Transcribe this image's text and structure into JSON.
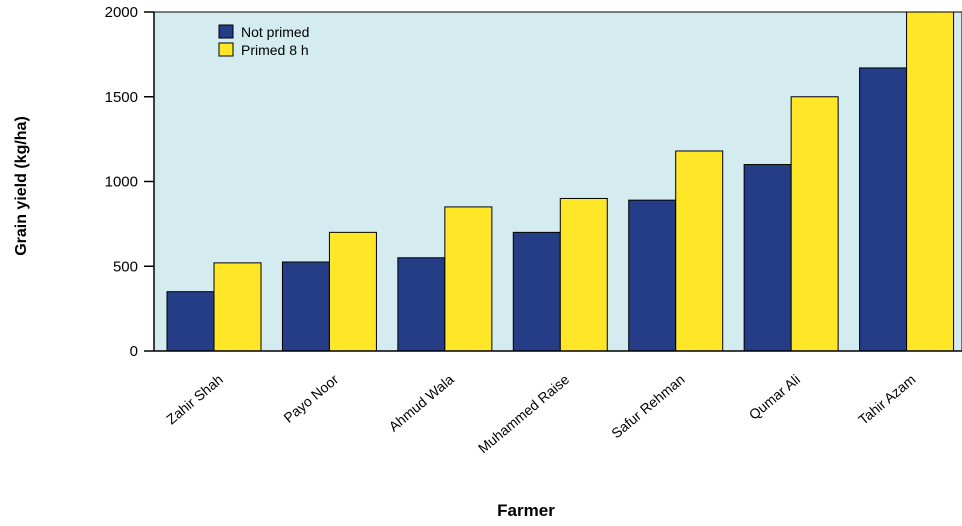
{
  "chart_data": {
    "type": "bar",
    "title": "",
    "xlabel": "Farmer",
    "ylabel": "Grain yield (kg/ha)",
    "ylim": [
      0,
      2000
    ],
    "yticks": [
      0,
      500,
      1000,
      1500,
      2000
    ],
    "grid": false,
    "legend_position": "top-left",
    "categories": [
      "Zahir Shah",
      "Payo Noor",
      "Ahmud Wala",
      "Muhammed Raise",
      "Safur Rehman",
      "Qumar Ali",
      "Tahir Azam"
    ],
    "series": [
      {
        "name": "Not primed",
        "color": "#253c87",
        "values": [
          350,
          525,
          550,
          700,
          890,
          1100,
          1670
        ]
      },
      {
        "name": "Primed 8 h",
        "color": "#ffe626",
        "values": [
          520,
          700,
          850,
          900,
          1180,
          1500,
          2000
        ]
      }
    ],
    "plot_background": "#d4ecf0"
  }
}
